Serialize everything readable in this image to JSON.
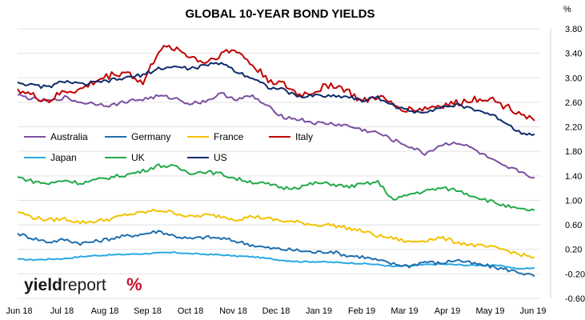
{
  "chart_data": {
    "type": "line",
    "title": "GLOBAL 10-YEAR BOND YIELDS",
    "unit_label": "%",
    "ylim": [
      -0.6,
      3.9
    ],
    "y_ticks": [
      "3.80",
      "3.40",
      "3.00",
      "2.60",
      "2.20",
      "1.80",
      "1.40",
      "1.00",
      "0.60",
      "0.20",
      "-0.20",
      "-0.60"
    ],
    "y_tick_values": [
      3.8,
      3.4,
      3.0,
      2.6,
      2.2,
      1.8,
      1.4,
      1.0,
      0.6,
      0.2,
      -0.2,
      -0.6
    ],
    "x_ticks": [
      "Jun 18",
      "Jul 18",
      "Aug 18",
      "Sep 18",
      "Oct 18",
      "Nov 18",
      "Dec 18",
      "Jan 19",
      "Feb 19",
      "Mar 19",
      "Apr 19",
      "May 19",
      "Jun 19"
    ],
    "grid": "horizontal",
    "legend_position": "middle-left",
    "series": [
      {
        "name": "Australia",
        "color": "#7b4fa0",
        "values": [
          2.72,
          2.65,
          2.62,
          2.68,
          2.6,
          2.58,
          2.55,
          2.62,
          2.65,
          2.7,
          2.67,
          2.58,
          2.62,
          2.74,
          2.65,
          2.7,
          2.52,
          2.36,
          2.32,
          2.26,
          2.25,
          2.22,
          2.15,
          2.1,
          1.98,
          1.88,
          1.76,
          1.9,
          1.95,
          1.85,
          1.7,
          1.55,
          1.48,
          1.37
        ]
      },
      {
        "name": "Germany",
        "color": "#1f6fae",
        "values": [
          0.46,
          0.38,
          0.32,
          0.36,
          0.3,
          0.33,
          0.38,
          0.42,
          0.45,
          0.5,
          0.42,
          0.37,
          0.4,
          0.38,
          0.33,
          0.27,
          0.22,
          0.2,
          0.18,
          0.15,
          0.17,
          0.1,
          0.08,
          0.02,
          -0.04,
          -0.07,
          0.0,
          -0.03,
          0.03,
          -0.03,
          -0.07,
          -0.12,
          -0.17,
          -0.24
        ]
      },
      {
        "name": "France",
        "color": "#f2c200",
        "values": [
          0.82,
          0.72,
          0.68,
          0.7,
          0.64,
          0.66,
          0.7,
          0.77,
          0.8,
          0.84,
          0.8,
          0.73,
          0.76,
          0.74,
          0.69,
          0.74,
          0.7,
          0.66,
          0.64,
          0.6,
          0.6,
          0.55,
          0.5,
          0.42,
          0.38,
          0.32,
          0.35,
          0.39,
          0.32,
          0.27,
          0.24,
          0.2,
          0.12,
          0.07
        ]
      },
      {
        "name": "Italy",
        "color": "#c00000",
        "values": [
          2.82,
          2.7,
          2.62,
          2.78,
          2.8,
          2.95,
          3.05,
          3.1,
          2.9,
          3.45,
          3.5,
          3.35,
          3.25,
          3.4,
          3.45,
          3.2,
          2.98,
          2.88,
          2.72,
          2.78,
          2.9,
          2.8,
          2.6,
          2.7,
          2.55,
          2.48,
          2.5,
          2.55,
          2.58,
          2.65,
          2.68,
          2.55,
          2.45,
          2.3
        ]
      },
      {
        "name": "Japan",
        "color": "#2aa9e0",
        "values": [
          0.04,
          0.03,
          0.04,
          0.05,
          0.08,
          0.1,
          0.11,
          0.12,
          0.13,
          0.14,
          0.15,
          0.13,
          0.12,
          0.11,
          0.09,
          0.08,
          0.05,
          0.02,
          0.0,
          0.0,
          -0.01,
          -0.02,
          -0.03,
          -0.05,
          -0.08,
          -0.07,
          -0.05,
          -0.04,
          -0.05,
          -0.06,
          -0.06,
          -0.07,
          -0.12,
          -0.1
        ]
      },
      {
        "name": "UK",
        "color": "#22a94a",
        "values": [
          1.38,
          1.31,
          1.27,
          1.33,
          1.28,
          1.33,
          1.38,
          1.42,
          1.48,
          1.57,
          1.55,
          1.45,
          1.47,
          1.43,
          1.35,
          1.3,
          1.26,
          1.2,
          1.22,
          1.28,
          1.27,
          1.22,
          1.26,
          1.3,
          1.0,
          1.1,
          1.15,
          1.2,
          1.17,
          1.08,
          1.0,
          0.92,
          0.85,
          0.84
        ]
      },
      {
        "name": "US",
        "color": "#0d2b6b",
        "values": [
          2.93,
          2.87,
          2.85,
          2.95,
          2.89,
          2.92,
          2.96,
          3.0,
          3.05,
          3.15,
          3.18,
          3.15,
          3.2,
          3.25,
          3.1,
          3.0,
          2.85,
          2.8,
          2.68,
          2.72,
          2.7,
          2.7,
          2.63,
          2.68,
          2.55,
          2.45,
          2.45,
          2.52,
          2.55,
          2.5,
          2.42,
          2.3,
          2.12,
          2.08
        ]
      }
    ]
  },
  "logo": {
    "part1": "yield",
    "part2": "report",
    "pct": "%"
  }
}
